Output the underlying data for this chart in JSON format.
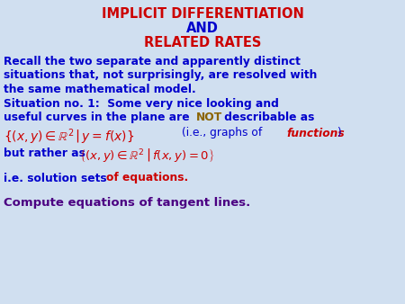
{
  "title_line1": "IMPLICIT DIFFERENTIATION",
  "title_line2": "AND",
  "title_line3": "RELATED RATES",
  "bg_color": "#D0DFF0",
  "blue_color": "#0000CC",
  "red_color": "#CC0000",
  "olive_color": "#8B6400",
  "purple_color": "#4B0082",
  "figsize": [
    4.5,
    3.38
  ],
  "dpi": 100
}
